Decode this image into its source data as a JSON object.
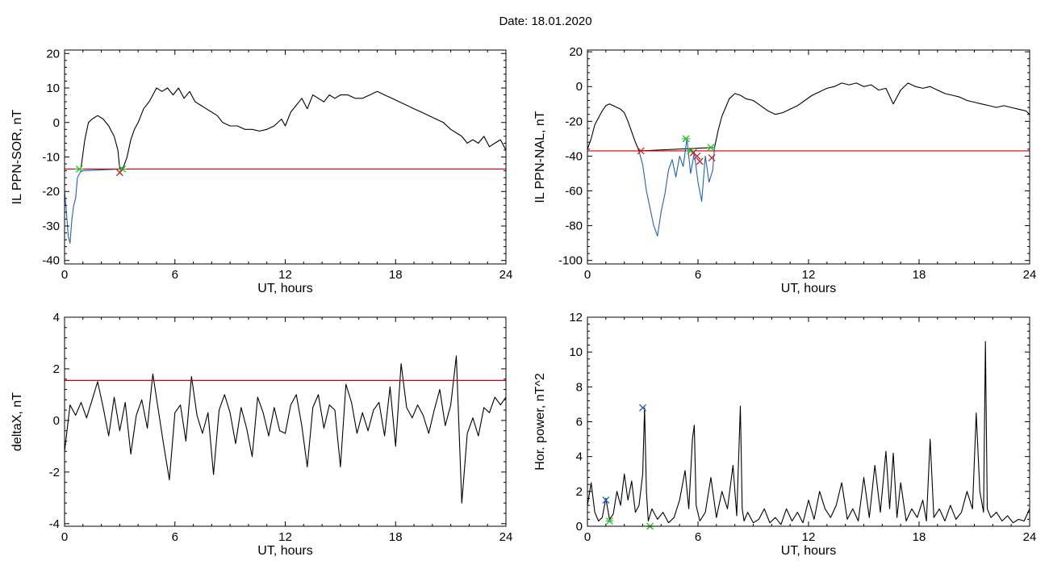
{
  "title": {
    "label": "Date:",
    "date": "18.01.2020"
  },
  "chart_data": [
    {
      "id": "sor",
      "type": "line",
      "xlabel": "UT, hours",
      "ylabel": "IL PPN-SOR, nT",
      "xlim": [
        0,
        24
      ],
      "ylim": [
        -41,
        21
      ],
      "xticks": [
        0,
        6,
        12,
        18,
        24
      ],
      "yticks": [
        -40,
        -30,
        -20,
        -10,
        0,
        10,
        20
      ],
      "threshold": -13.5,
      "series": [
        {
          "color": "#000000",
          "x": [
            0.9,
            1.1,
            1.3,
            1.5,
            1.8,
            2.1,
            2.4,
            2.7,
            2.9,
            3.0,
            3.2,
            3.4,
            3.6,
            3.8,
            4.0,
            4.3,
            4.6,
            4.8,
            5.0,
            5.3,
            5.6,
            5.9,
            6.2,
            6.5,
            6.8,
            7.1,
            7.4,
            7.7,
            8.0,
            8.3,
            8.6,
            9.0,
            9.4,
            9.8,
            10.2,
            10.6,
            11.0,
            11.4,
            11.8,
            12.0,
            12.3,
            12.6,
            12.9,
            13.2,
            13.5,
            13.8,
            14.1,
            14.4,
            14.7,
            15.0,
            15.4,
            15.8,
            16.2,
            16.6,
            17.0,
            17.4,
            17.8,
            18.2,
            18.6,
            19.0,
            19.4,
            19.8,
            20.2,
            20.6,
            21.0,
            21.3,
            21.6,
            21.9,
            22.2,
            22.5,
            22.8,
            23.1,
            23.4,
            23.7,
            24.0
          ],
          "y": [
            -13,
            -5,
            0,
            1,
            2,
            1,
            -1,
            -4,
            -8,
            -13.5,
            -13,
            -10,
            -5,
            -2,
            0,
            4,
            6,
            8,
            10,
            9,
            10,
            8,
            10,
            7,
            9,
            6,
            5,
            4,
            3,
            2,
            0,
            -1,
            -1,
            -2,
            -2,
            -2.5,
            -2,
            -1,
            1,
            -1,
            3,
            5,
            7,
            4,
            8,
            7,
            6,
            8,
            7,
            8,
            8,
            7,
            7,
            8,
            9,
            8,
            7,
            6,
            5,
            4,
            3,
            2,
            1,
            0,
            -2,
            -3,
            -4,
            -6,
            -5,
            -6,
            -4,
            -7,
            -6,
            -5,
            -8
          ]
        },
        {
          "color": "#1f5fd0",
          "x": [
            0.0,
            0.1,
            0.2,
            0.3,
            0.4,
            0.5,
            0.6,
            0.7,
            0.8,
            0.9,
            3.0,
            3.1,
            3.2
          ],
          "y": [
            -20,
            -26,
            -33,
            -35,
            -28,
            -24,
            -22,
            -16,
            -15,
            -14,
            -13.5,
            -14,
            -13
          ]
        }
      ],
      "markers": [
        {
          "type": "x",
          "color": "#20c020",
          "x": 0.8,
          "y": -13.5
        },
        {
          "type": "x",
          "color": "#20c020",
          "x": 3.15,
          "y": -13.5
        },
        {
          "type": "x",
          "color": "#d02020",
          "x": 3.0,
          "y": -14.5
        }
      ]
    },
    {
      "id": "nal",
      "type": "line",
      "xlabel": "UT, hours",
      "ylabel": "IL PPN-NAL, nT",
      "xlim": [
        0,
        24
      ],
      "ylim": [
        -102,
        21
      ],
      "xticks": [
        0,
        6,
        12,
        18,
        24
      ],
      "yticks": [
        -100,
        -80,
        -60,
        -40,
        -20,
        0,
        20
      ],
      "threshold": -37,
      "series": [
        {
          "color": "#000000",
          "x": [
            0.0,
            0.2,
            0.4,
            0.6,
            0.8,
            1.0,
            1.2,
            1.4,
            1.6,
            1.8,
            2.0,
            2.2,
            2.4,
            2.6,
            2.8,
            6.9,
            7.1,
            7.3,
            7.5,
            7.7,
            8.0,
            8.3,
            8.6,
            9.0,
            9.4,
            9.8,
            10.2,
            10.6,
            11.0,
            11.4,
            11.8,
            12.2,
            12.6,
            13.0,
            13.4,
            13.8,
            14.2,
            14.6,
            15.0,
            15.4,
            15.8,
            16.2,
            16.6,
            17.0,
            17.4,
            17.8,
            18.2,
            18.6,
            19.0,
            19.4,
            19.8,
            20.2,
            20.6,
            21.0,
            21.4,
            21.8,
            22.2,
            22.6,
            23.0,
            23.4,
            23.8,
            24.0
          ],
          "y": [
            -36,
            -30,
            -22,
            -18,
            -14,
            -11,
            -10,
            -11,
            -12,
            -13,
            -15,
            -20,
            -26,
            -32,
            -37,
            -35,
            -25,
            -17,
            -12,
            -7,
            -4,
            -5,
            -7,
            -8,
            -11,
            -14,
            -16,
            -15,
            -13,
            -11,
            -8,
            -5,
            -3,
            -1,
            0,
            2,
            1,
            2,
            0,
            1,
            -2,
            -1,
            -10,
            -2,
            2,
            0,
            -1,
            0,
            -2,
            -4,
            -5,
            -6,
            -8,
            -9,
            -10,
            -11,
            -12,
            -11,
            -12,
            -13,
            -14,
            -16
          ]
        },
        {
          "color": "#1f5fd0",
          "x": [
            2.8,
            3.0,
            3.2,
            3.4,
            3.6,
            3.8,
            4.0,
            4.2,
            4.4,
            4.6,
            4.8,
            5.0,
            5.2,
            5.4,
            5.6,
            5.8,
            6.0,
            6.2,
            6.4,
            6.6,
            6.8,
            6.9
          ],
          "y": [
            -37,
            -45,
            -60,
            -70,
            -80,
            -86,
            -72,
            -62,
            -48,
            -42,
            -52,
            -40,
            -46,
            -30,
            -50,
            -38,
            -55,
            -66,
            -40,
            -55,
            -48,
            -35
          ]
        }
      ],
      "markers": [
        {
          "type": "x",
          "color": "#d02020",
          "x": 2.9,
          "y": -37
        },
        {
          "type": "x",
          "color": "#20c020",
          "x": 5.35,
          "y": -30
        },
        {
          "type": "x",
          "color": "#20c020",
          "x": 5.6,
          "y": -37
        },
        {
          "type": "x",
          "color": "#d02020",
          "x": 5.75,
          "y": -38
        },
        {
          "type": "x",
          "color": "#d02020",
          "x": 5.95,
          "y": -40
        },
        {
          "type": "x",
          "color": "#d02020",
          "x": 6.1,
          "y": -43
        },
        {
          "type": "x",
          "color": "#20c020",
          "x": 6.7,
          "y": -35
        },
        {
          "type": "x",
          "color": "#d02020",
          "x": 6.75,
          "y": -41
        }
      ]
    },
    {
      "id": "deltax",
      "type": "line",
      "xlabel": "UT, hours",
      "ylabel": "deltaX, nT",
      "xlim": [
        0,
        24
      ],
      "ylim": [
        -4.1,
        4
      ],
      "xticks": [
        0,
        6,
        12,
        18,
        24
      ],
      "yticks": [
        -4,
        -2,
        0,
        2,
        4
      ],
      "threshold": 1.55,
      "series": [
        {
          "color": "#000000",
          "x": [
            0.0,
            0.3,
            0.6,
            0.9,
            1.2,
            1.5,
            1.8,
            2.1,
            2.4,
            2.7,
            3.0,
            3.3,
            3.6,
            3.9,
            4.2,
            4.5,
            4.8,
            5.1,
            5.4,
            5.7,
            6.0,
            6.3,
            6.6,
            6.9,
            7.2,
            7.5,
            7.8,
            8.1,
            8.4,
            8.7,
            9.0,
            9.3,
            9.6,
            9.9,
            10.2,
            10.5,
            10.8,
            11.1,
            11.4,
            11.7,
            12.0,
            12.3,
            12.6,
            12.9,
            13.2,
            13.5,
            13.8,
            14.1,
            14.4,
            14.7,
            15.0,
            15.3,
            15.6,
            15.9,
            16.2,
            16.5,
            16.8,
            17.1,
            17.4,
            17.7,
            18.0,
            18.3,
            18.6,
            18.9,
            19.2,
            19.5,
            19.8,
            20.1,
            20.4,
            20.7,
            21.0,
            21.3,
            21.6,
            21.9,
            22.2,
            22.5,
            22.8,
            23.1,
            23.4,
            23.7,
            24.0
          ],
          "y": [
            -1.2,
            0.6,
            0.2,
            0.7,
            0.1,
            0.8,
            1.5,
            0.5,
            -0.6,
            0.9,
            -0.4,
            0.7,
            -1.3,
            0.2,
            0.8,
            -0.3,
            1.8,
            0.4,
            -1.0,
            -2.3,
            0.3,
            0.6,
            -0.8,
            1.7,
            0.2,
            -0.5,
            0.3,
            -2.1,
            0.4,
            1.0,
            0.3,
            -0.9,
            0.5,
            -0.3,
            -1.4,
            0.9,
            0.3,
            -0.6,
            0.5,
            -0.4,
            -0.5,
            0.6,
            1.0,
            -0.2,
            -1.8,
            0.5,
            1.0,
            -0.3,
            0.6,
            0.4,
            -1.8,
            1.4,
            0.7,
            -0.5,
            0.3,
            -0.4,
            0.4,
            0.7,
            -0.6,
            1.3,
            -1.0,
            2.2,
            0.5,
            0.1,
            0.6,
            0.2,
            -0.5,
            0.4,
            1.2,
            -0.2,
            0.6,
            2.5,
            -3.2,
            -0.5,
            0.1,
            -0.6,
            0.5,
            0.3,
            0.9,
            0.6,
            0.9
          ]
        }
      ],
      "markers": []
    },
    {
      "id": "power",
      "type": "line",
      "xlabel": "UT, hours",
      "ylabel": "Hor. power, nT^2",
      "xlim": [
        0,
        24
      ],
      "ylim": [
        0,
        12
      ],
      "xticks": [
        0,
        6,
        12,
        18,
        24
      ],
      "yticks": [
        0,
        2,
        4,
        6,
        8,
        10,
        12
      ],
      "threshold": null,
      "series": [
        {
          "color": "#000000",
          "x": [
            0.0,
            0.2,
            0.4,
            0.6,
            0.8,
            1.0,
            1.2,
            1.4,
            1.6,
            1.8,
            2.0,
            2.2,
            2.4,
            2.6,
            2.8,
            3.0,
            3.1,
            3.2,
            3.3,
            3.5,
            3.8,
            4.1,
            4.4,
            4.7,
            5.0,
            5.3,
            5.5,
            5.7,
            5.8,
            5.9,
            6.1,
            6.4,
            6.7,
            7.0,
            7.3,
            7.6,
            7.9,
            8.1,
            8.3,
            8.4,
            8.5,
            8.7,
            9.0,
            9.3,
            9.6,
            9.9,
            10.2,
            10.5,
            10.8,
            11.1,
            11.4,
            11.7,
            12.0,
            12.3,
            12.6,
            12.9,
            13.2,
            13.5,
            13.8,
            14.1,
            14.4,
            14.7,
            15.0,
            15.3,
            15.6,
            15.9,
            16.2,
            16.4,
            16.6,
            16.8,
            17.0,
            17.3,
            17.6,
            17.9,
            18.2,
            18.4,
            18.6,
            18.8,
            19.1,
            19.4,
            19.7,
            20.0,
            20.3,
            20.6,
            20.9,
            21.1,
            21.3,
            21.5,
            21.6,
            21.7,
            21.9,
            22.2,
            22.5,
            22.8,
            23.1,
            23.4,
            23.7,
            24.0
          ],
          "y": [
            1.2,
            2.5,
            0.8,
            0.3,
            0.5,
            1.6,
            0.4,
            0.7,
            2.0,
            1.2,
            3.0,
            1.5,
            2.6,
            0.8,
            1.2,
            3.0,
            6.8,
            2.0,
            0.3,
            1.0,
            0.4,
            0.8,
            0.2,
            0.5,
            1.5,
            3.2,
            1.0,
            5.0,
            5.8,
            1.2,
            0.3,
            0.8,
            2.8,
            0.5,
            2.0,
            1.0,
            3.5,
            0.6,
            6.9,
            1.0,
            0.3,
            0.8,
            0.2,
            0.4,
            1.0,
            0.2,
            0.5,
            0.1,
            1.0,
            0.3,
            0.8,
            0.2,
            1.5,
            0.4,
            2.0,
            1.0,
            0.5,
            1.2,
            2.5,
            0.4,
            1.0,
            0.3,
            2.8,
            0.5,
            3.5,
            0.8,
            4.3,
            1.0,
            4.2,
            0.5,
            2.5,
            0.3,
            1.0,
            0.5,
            1.5,
            0.3,
            5.0,
            0.5,
            1.0,
            0.3,
            1.2,
            0.4,
            0.8,
            2.0,
            1.0,
            6.5,
            2.0,
            0.8,
            10.6,
            1.0,
            0.5,
            0.8,
            0.3,
            0.6,
            0.2,
            0.4,
            0.3,
            1.0
          ]
        }
      ],
      "markers": [
        {
          "type": "x",
          "color": "#1f5fd0",
          "x": 3.0,
          "y": 6.8
        },
        {
          "type": "x",
          "color": "#1f5fd0",
          "x": 1.0,
          "y": 1.5
        },
        {
          "type": "x",
          "color": "#20c020",
          "x": 1.2,
          "y": 0.3
        },
        {
          "type": "x",
          "color": "#20c020",
          "x": 3.4,
          "y": 0.0
        }
      ]
    }
  ]
}
